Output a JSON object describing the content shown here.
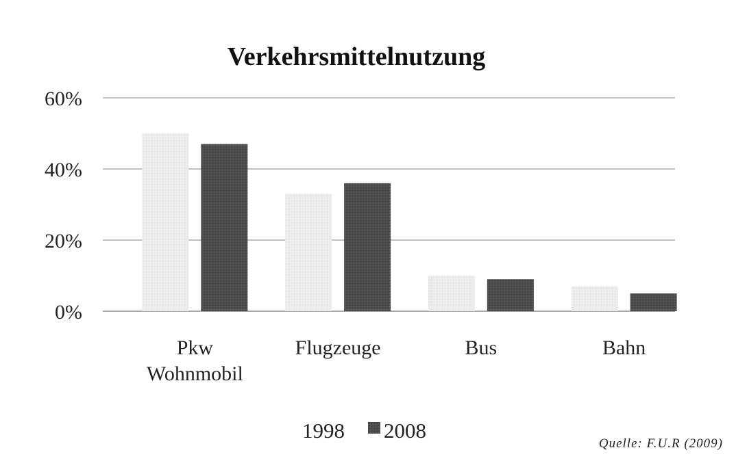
{
  "chart_data": {
    "type": "bar",
    "title": "Verkehrsmittelnutzung",
    "categories": [
      [
        "Pkw",
        "Wohnmobil"
      ],
      [
        "Flugzeuge"
      ],
      [
        "Bus"
      ],
      [
        "Bahn"
      ]
    ],
    "series": [
      {
        "name": "1998",
        "values": [
          50,
          33,
          10,
          7
        ],
        "color": "#ebebeb"
      },
      {
        "name": "2008",
        "values": [
          47,
          36,
          9,
          5
        ],
        "color": "#4d4d4d"
      }
    ],
    "ylim": [
      0,
      60
    ],
    "yticks": [
      0,
      20,
      40,
      60
    ],
    "ytick_labels": [
      "0%",
      "20%",
      "40%",
      "60%"
    ],
    "grid": true,
    "legend_position": "bottom",
    "source": "Quelle: F.U.R (2009)"
  }
}
